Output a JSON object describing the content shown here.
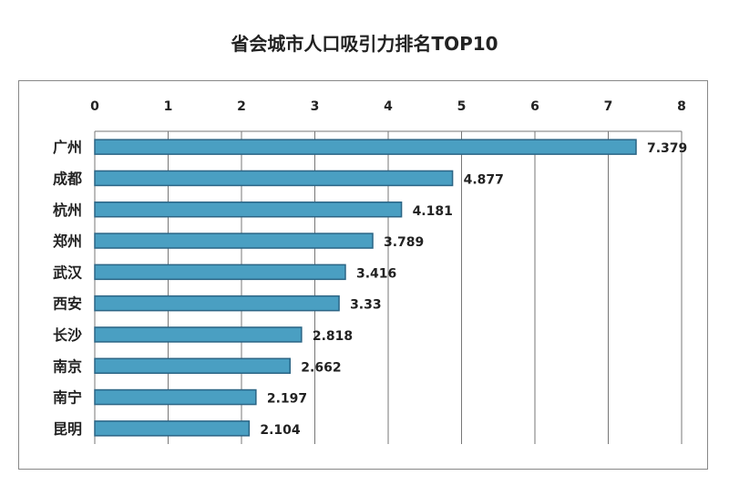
{
  "chart_data": {
    "type": "bar",
    "orientation": "horizontal",
    "title": "省会城市人口吸引力排名TOP10",
    "categories": [
      "广州",
      "成都",
      "杭州",
      "郑州",
      "武汉",
      "西安",
      "长沙",
      "南京",
      "南宁",
      "昆明"
    ],
    "values": [
      7.379,
      4.877,
      4.181,
      3.789,
      3.416,
      3.33,
      2.818,
      2.662,
      2.197,
      2.104
    ],
    "data_labels": [
      "7.379",
      "4.877",
      "4.181",
      "3.789",
      "3.416",
      "3.33",
      "2.818",
      "2.662",
      "2.197",
      "2.104"
    ],
    "xlim": [
      0,
      8
    ],
    "x_ticks": [
      "0",
      "1",
      "2",
      "3",
      "4",
      "5",
      "6",
      "7",
      "8"
    ],
    "x_axis_position": "top",
    "grid": true,
    "legend": "none",
    "colors": {
      "bar_fill": "#4a9fc2",
      "bar_border": "#2b6585",
      "grid": "#777777"
    }
  }
}
